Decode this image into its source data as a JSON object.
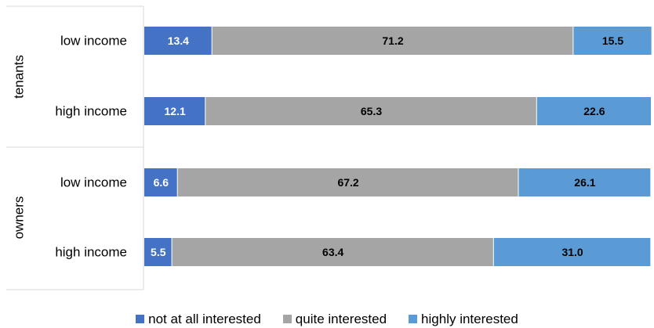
{
  "chart_data": {
    "type": "bar",
    "orientation": "horizontal",
    "stacked": true,
    "groups": [
      {
        "name": "tenants",
        "categories": [
          "low income",
          "high income"
        ]
      },
      {
        "name": "owners",
        "categories": [
          "low income",
          "high income"
        ]
      }
    ],
    "series": [
      {
        "name": "not at all interested",
        "color": "#4472C4",
        "label_color": "#ffffff",
        "values": [
          13.4,
          12.1,
          6.6,
          5.5
        ],
        "labels": [
          "13.4",
          "12.1",
          "6.6",
          "5.5"
        ]
      },
      {
        "name": "quite interested",
        "color": "#A5A5A5",
        "label_color": "#000000",
        "values": [
          71.2,
          65.3,
          67.2,
          63.4
        ],
        "labels": [
          "71.2",
          "65.3",
          "67.2",
          "63.4"
        ]
      },
      {
        "name": "highly interested",
        "color": "#5B9BD5",
        "label_color": "#000000",
        "values": [
          15.5,
          22.6,
          26.1,
          31.0
        ],
        "labels": [
          "15.5",
          "22.6",
          "26.1",
          "31.0"
        ]
      }
    ],
    "xlim": [
      0,
      100
    ],
    "grid": false,
    "legend_position": "bottom"
  }
}
